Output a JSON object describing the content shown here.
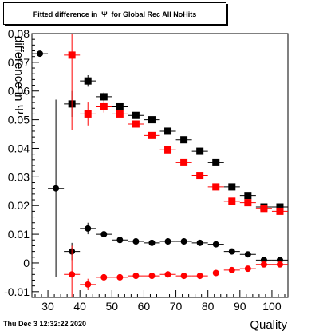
{
  "chart_data": {
    "type": "scatter",
    "title": "Fitted difference in  Ψ  for Global Rec All NoHits",
    "xlabel": "Quality",
    "ylabel": "difference in  Ψ",
    "xlim": [
      25,
      105
    ],
    "ylim": [
      -0.012,
      0.08
    ],
    "x_ticks": [
      30,
      40,
      50,
      60,
      70,
      80,
      90,
      100
    ],
    "y_ticks": [
      -0.01,
      0,
      0.01,
      0.02,
      0.03,
      0.04,
      0.05,
      0.06,
      0.07,
      0.08
    ],
    "x_tick_labels": [
      "30",
      "40",
      "50",
      "60",
      "70",
      "80",
      "90",
      "100"
    ],
    "y_tick_labels": [
      "-0.01",
      "0",
      "0.01",
      "0.02",
      "0.03",
      "0.04",
      "0.05",
      "0.06",
      "0.07",
      "0.08"
    ],
    "grid": false,
    "series": [
      {
        "marker": "circle",
        "color": "#000000",
        "points": [
          {
            "x": 27.5,
            "y": 0.073,
            "yerr": 0
          },
          {
            "x": 32.5,
            "y": 0.026,
            "yerr": 0.031
          },
          {
            "x": 37.5,
            "y": 0.004,
            "yerr": 0.003
          },
          {
            "x": 42.5,
            "y": 0.012,
            "yerr": 0.002
          },
          {
            "x": 47.5,
            "y": 0.01,
            "yerr": 0.001
          },
          {
            "x": 52.5,
            "y": 0.008,
            "yerr": 0
          },
          {
            "x": 57.5,
            "y": 0.0075,
            "yerr": 0
          },
          {
            "x": 62.5,
            "y": 0.007,
            "yerr": 0
          },
          {
            "x": 67.5,
            "y": 0.0075,
            "yerr": 0
          },
          {
            "x": 72.5,
            "y": 0.0075,
            "yerr": 0
          },
          {
            "x": 77.5,
            "y": 0.007,
            "yerr": 0
          },
          {
            "x": 82.5,
            "y": 0.0065,
            "yerr": 0
          },
          {
            "x": 87.5,
            "y": 0.004,
            "yerr": 0
          },
          {
            "x": 92.5,
            "y": 0.003,
            "yerr": 0
          },
          {
            "x": 97.5,
            "y": 0.001,
            "yerr": 0
          },
          {
            "x": 102.5,
            "y": 0.001,
            "yerr": 0
          }
        ]
      },
      {
        "marker": "circle",
        "color": "#ff0000",
        "points": [
          {
            "x": 37.5,
            "y": -0.004,
            "yerr": 0.01
          },
          {
            "x": 42.5,
            "y": -0.0075,
            "yerr": 0.002
          },
          {
            "x": 47.5,
            "y": -0.005,
            "yerr": 0.001
          },
          {
            "x": 52.5,
            "y": -0.005,
            "yerr": 0
          },
          {
            "x": 57.5,
            "y": -0.0045,
            "yerr": 0
          },
          {
            "x": 62.5,
            "y": -0.0045,
            "yerr": 0
          },
          {
            "x": 67.5,
            "y": -0.004,
            "yerr": 0
          },
          {
            "x": 72.5,
            "y": -0.0045,
            "yerr": 0
          },
          {
            "x": 77.5,
            "y": -0.0045,
            "yerr": 0
          },
          {
            "x": 82.5,
            "y": -0.0035,
            "yerr": 0
          },
          {
            "x": 87.5,
            "y": -0.0025,
            "yerr": 0
          },
          {
            "x": 92.5,
            "y": -0.002,
            "yerr": 0
          },
          {
            "x": 97.5,
            "y": -0.0005,
            "yerr": 0
          },
          {
            "x": 102.5,
            "y": -0.0005,
            "yerr": 0
          }
        ]
      },
      {
        "marker": "square",
        "color": "#000000",
        "points": [
          {
            "x": 37.5,
            "y": 0.0555,
            "yerr": 0.0045
          },
          {
            "x": 42.5,
            "y": 0.0635,
            "yerr": 0.002
          },
          {
            "x": 47.5,
            "y": 0.058,
            "yerr": 0.0015
          },
          {
            "x": 52.5,
            "y": 0.0545,
            "yerr": 0.001
          },
          {
            "x": 57.5,
            "y": 0.0515,
            "yerr": 0
          },
          {
            "x": 62.5,
            "y": 0.05,
            "yerr": 0
          },
          {
            "x": 67.5,
            "y": 0.046,
            "yerr": 0
          },
          {
            "x": 72.5,
            "y": 0.043,
            "yerr": 0
          },
          {
            "x": 77.5,
            "y": 0.039,
            "yerr": 0
          },
          {
            "x": 82.5,
            "y": 0.035,
            "yerr": 0
          },
          {
            "x": 87.5,
            "y": 0.0265,
            "yerr": 0
          },
          {
            "x": 92.5,
            "y": 0.0235,
            "yerr": 0
          },
          {
            "x": 97.5,
            "y": 0.0195,
            "yerr": 0
          },
          {
            "x": 102.5,
            "y": 0.0195,
            "yerr": 0
          }
        ]
      },
      {
        "marker": "square",
        "color": "#ff0000",
        "points": [
          {
            "x": 37.5,
            "y": 0.0725,
            "yerr": 0.026
          },
          {
            "x": 42.5,
            "y": 0.052,
            "yerr": 0.004
          },
          {
            "x": 47.5,
            "y": 0.0545,
            "yerr": 0.002
          },
          {
            "x": 52.5,
            "y": 0.052,
            "yerr": 0.001
          },
          {
            "x": 57.5,
            "y": 0.0485,
            "yerr": 0
          },
          {
            "x": 62.5,
            "y": 0.0445,
            "yerr": 0
          },
          {
            "x": 67.5,
            "y": 0.0395,
            "yerr": 0
          },
          {
            "x": 72.5,
            "y": 0.035,
            "yerr": 0
          },
          {
            "x": 77.5,
            "y": 0.0305,
            "yerr": 0
          },
          {
            "x": 82.5,
            "y": 0.0265,
            "yerr": 0
          },
          {
            "x": 87.5,
            "y": 0.0215,
            "yerr": 0
          },
          {
            "x": 92.5,
            "y": 0.021,
            "yerr": 0
          },
          {
            "x": 97.5,
            "y": 0.019,
            "yerr": 0
          },
          {
            "x": 102.5,
            "y": 0.018,
            "yerr": 0
          }
        ]
      }
    ]
  },
  "footer": {
    "date": "Thu Dec  3 12:32:22 2020"
  }
}
